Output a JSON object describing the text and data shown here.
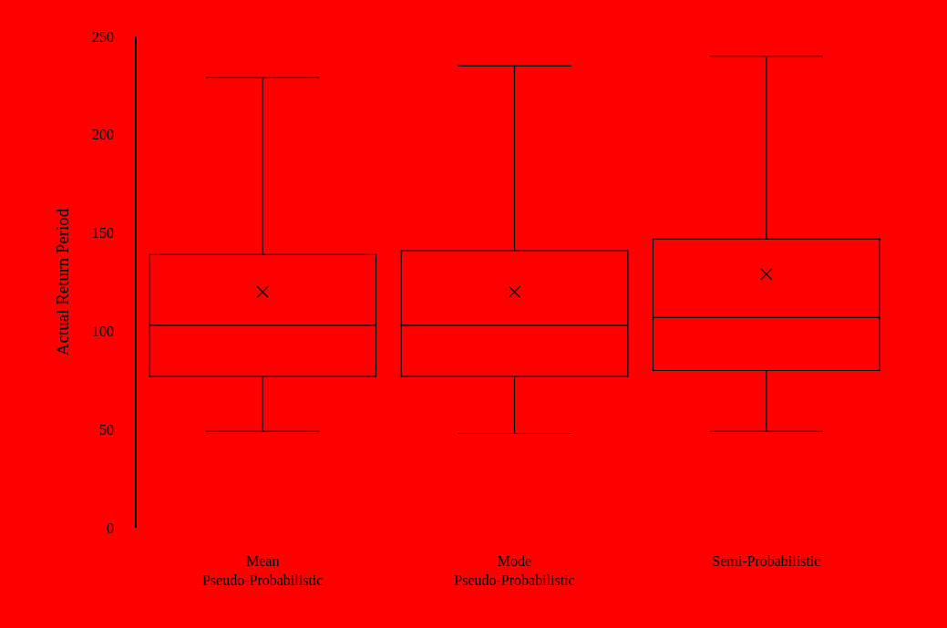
{
  "chart_data": {
    "type": "box",
    "ylabel": "Actual Return Period",
    "categories": [
      "Mean\nPseudo-Probabilistic",
      "Mode\nPseudo-Probabilistic",
      "Semi-Probabilistic"
    ],
    "boxes": [
      {
        "low": 49,
        "q1": 77,
        "median": 103,
        "q3": 139,
        "high": 229,
        "mean": 120
      },
      {
        "low": 48,
        "q1": 77,
        "median": 103,
        "q3": 141,
        "high": 235,
        "mean": 120
      },
      {
        "low": 49,
        "q1": 80,
        "median": 107,
        "q3": 147,
        "high": 240,
        "mean": 129
      }
    ],
    "color": "#ff0000",
    "ylim": [
      0,
      250
    ],
    "yticks": [
      0,
      50,
      100,
      150,
      200,
      250
    ],
    "grid": false
  }
}
